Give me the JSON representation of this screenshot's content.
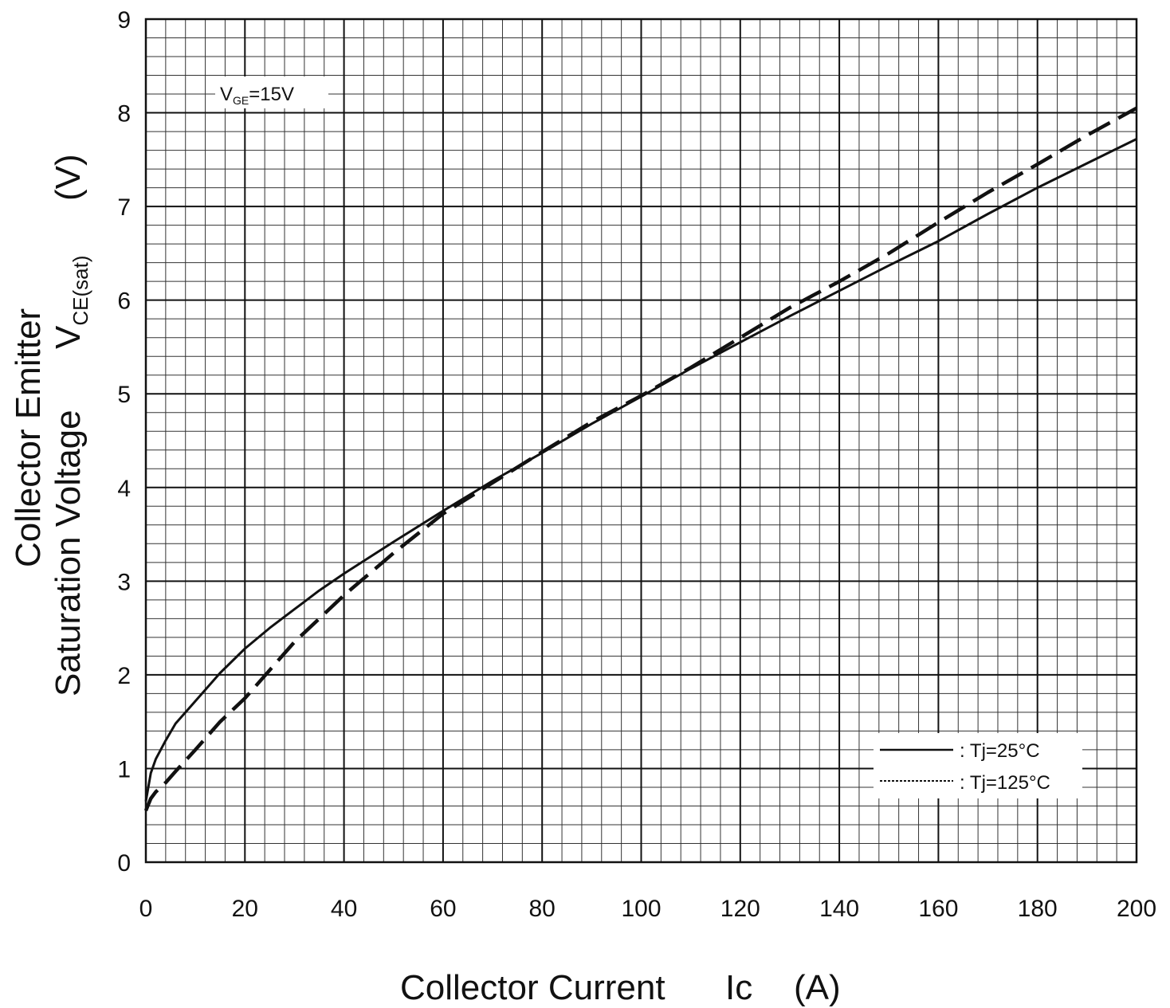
{
  "chart_data": {
    "type": "line",
    "annotation": {
      "main": "V",
      "sub": "GE",
      "rest": "=15V"
    },
    "xlabel": {
      "text": "Collector Current",
      "symbol": "Ic",
      "unit": "(A)"
    },
    "ylabel": {
      "line1": "Collector Emitter",
      "line2": "Saturation Voltage",
      "symbol": "V",
      "symbol_sub": "CE(sat)",
      "unit": "(V)"
    },
    "xlim": [
      0,
      200
    ],
    "ylim": [
      0,
      9
    ],
    "x_ticks": [
      "0",
      "20",
      "40",
      "60",
      "80",
      "100",
      "120",
      "140",
      "160",
      "180",
      "200"
    ],
    "y_ticks": [
      "0",
      "1",
      "2",
      "3",
      "4",
      "5",
      "6",
      "7",
      "8",
      "9"
    ],
    "grid": true,
    "legend_position": "bottom-right",
    "series": [
      {
        "name": ": Tj=25°C",
        "style": "solid",
        "color": "#111111",
        "x": [
          0,
          1,
          2,
          4,
          6,
          10,
          15,
          20,
          25,
          30,
          35,
          40,
          50,
          60,
          70,
          80,
          90,
          100,
          110,
          120,
          130,
          140,
          150,
          160,
          170,
          180,
          190,
          200
        ],
        "y": [
          0.65,
          0.95,
          1.1,
          1.3,
          1.48,
          1.72,
          2.02,
          2.28,
          2.5,
          2.7,
          2.9,
          3.08,
          3.42,
          3.75,
          4.07,
          4.37,
          4.68,
          4.97,
          5.27,
          5.55,
          5.83,
          6.1,
          6.37,
          6.63,
          6.92,
          7.2,
          7.46,
          7.72
        ]
      },
      {
        "name": ": Tj=125°C",
        "style": "dashed",
        "color": "#111111",
        "x": [
          0,
          1,
          2,
          4,
          6,
          10,
          15,
          20,
          25,
          30,
          35,
          40,
          50,
          60,
          70,
          80,
          90,
          100,
          110,
          120,
          130,
          140,
          150,
          160,
          170,
          180,
          190,
          200
        ],
        "y": [
          0.55,
          0.68,
          0.75,
          0.85,
          0.97,
          1.2,
          1.5,
          1.75,
          2.05,
          2.35,
          2.6,
          2.85,
          3.3,
          3.72,
          4.05,
          4.38,
          4.7,
          4.98,
          5.28,
          5.6,
          5.92,
          6.2,
          6.5,
          6.83,
          7.15,
          7.45,
          7.76,
          8.05
        ]
      }
    ]
  },
  "colors": {
    "background": "#ffffff",
    "ink": "#111111",
    "grid_major": "#111111",
    "grid_minor": "#333333"
  }
}
